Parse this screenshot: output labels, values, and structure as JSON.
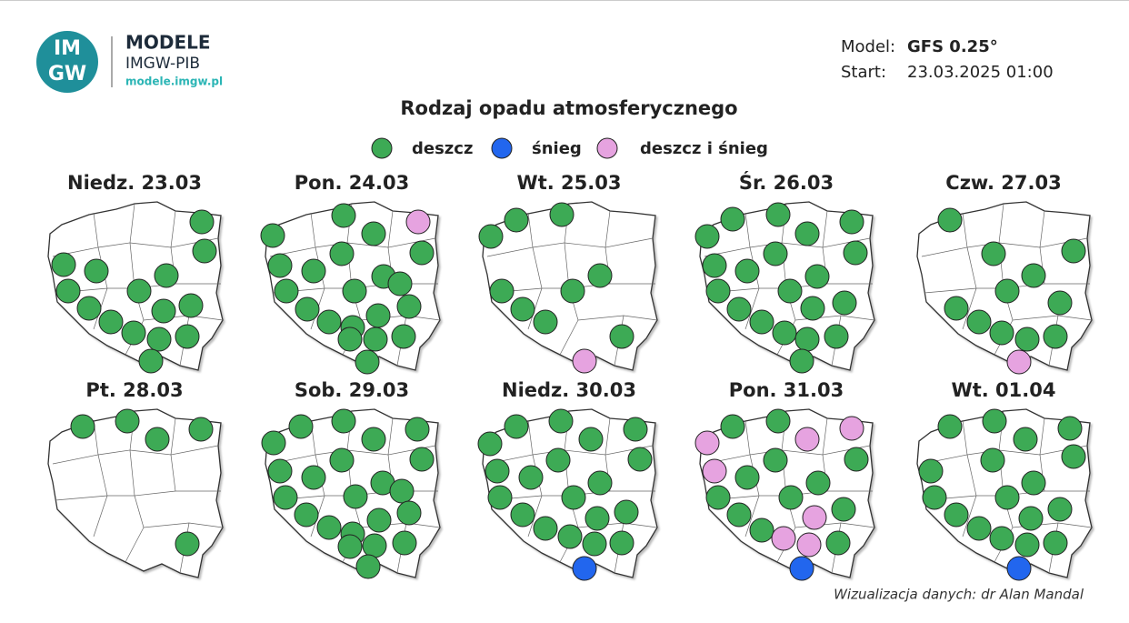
{
  "header": {
    "logo_lines": [
      "IM",
      "GW"
    ],
    "brand": "MODELE",
    "institute": "IMGW-PIB",
    "url": "modele.imgw.pl",
    "model_label": "Model:",
    "model_value": "GFS 0.25°",
    "start_label": "Start:",
    "start_value": "23.03.2025 01:00"
  },
  "title": "Rodzaj opadu atmosferycznego",
  "legend": [
    {
      "label": "deszcz",
      "color": "#3daa55"
    },
    {
      "label": "śnieg",
      "color": "#2266ee"
    },
    {
      "label": "deszcz i śnieg",
      "color": "#e6a3e0"
    }
  ],
  "panels": [
    {
      "label": "Niedz. 23.03"
    },
    {
      "label": "Pon. 24.03"
    },
    {
      "label": "Wt. 25.03"
    },
    {
      "label": "Śr. 26.03"
    },
    {
      "label": "Czw. 27.03"
    },
    {
      "label": "Pt. 28.03"
    },
    {
      "label": "Sob. 29.03"
    },
    {
      "label": "Niedz. 30.03"
    },
    {
      "label": "Pon. 31.03"
    },
    {
      "label": "Wt. 01.04"
    }
  ],
  "footer": "Wizualizacja danych: dr Alan Mandal"
}
